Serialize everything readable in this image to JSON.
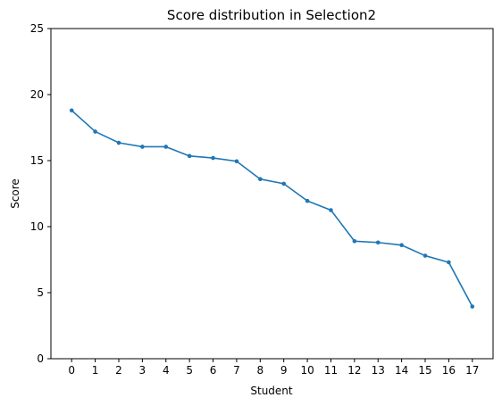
{
  "chart_data": {
    "type": "line",
    "title": "Score distribution in Selection2",
    "xlabel": "Student",
    "ylabel": "Score",
    "x": [
      0,
      1,
      2,
      3,
      4,
      5,
      6,
      7,
      8,
      9,
      10,
      11,
      12,
      13,
      14,
      15,
      16,
      17
    ],
    "xticks": [
      "0",
      "1",
      "2",
      "3",
      "4",
      "5",
      "6",
      "7",
      "8",
      "9",
      "10",
      "11",
      "12",
      "13",
      "14",
      "15",
      "16",
      "17"
    ],
    "yticks": [
      "0",
      "5",
      "10",
      "15",
      "20",
      "25"
    ],
    "xlim": [
      -0.88,
      17.88
    ],
    "ylim": [
      0,
      25
    ],
    "series": [
      {
        "color": "#1f77b4",
        "marker": "point",
        "values": [
          18.8,
          17.2,
          16.35,
          16.05,
          16.05,
          15.35,
          15.2,
          14.95,
          13.6,
          13.25,
          11.95,
          11.25,
          8.9,
          8.8,
          8.6,
          7.8,
          7.3,
          3.95
        ]
      }
    ],
    "grid": false,
    "legend": "none"
  }
}
